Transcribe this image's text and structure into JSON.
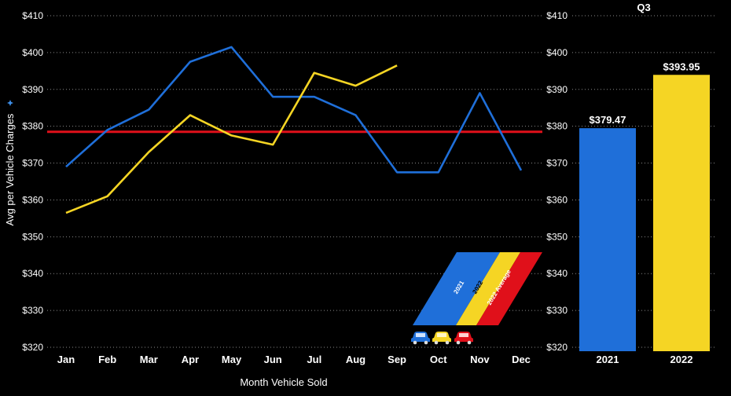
{
  "chart_data": [
    {
      "type": "line",
      "ylabel": "Avg per Vehicle Charges",
      "xlabel": "Month Vehicle Sold",
      "ylim": [
        320,
        410
      ],
      "y_ticks": [
        "$320",
        "$330",
        "$340",
        "$350",
        "$360",
        "$370",
        "$380",
        "$390",
        "$400",
        "$410"
      ],
      "grid": "horizontal dotted",
      "categories": [
        "Jan",
        "Feb",
        "Mar",
        "Apr",
        "May",
        "Jun",
        "Jul",
        "Aug",
        "Sep",
        "Oct",
        "Nov",
        "Dec"
      ],
      "series": [
        {
          "name": "2021",
          "color": "#1f6fd9",
          "values": [
            369.0,
            379.0,
            384.5,
            397.5,
            401.5,
            388.0,
            388.0,
            383.0,
            367.5,
            367.5,
            389.0,
            368.0
          ]
        },
        {
          "name": "2022",
          "color": "#f5d524",
          "values": [
            356.5,
            361.0,
            373.0,
            383.0,
            377.5,
            375.0,
            394.5,
            391.0,
            396.5,
            null,
            null,
            null
          ]
        },
        {
          "name": "2022 Average",
          "color": "#e0101a",
          "values": [
            378.5,
            378.5,
            378.5,
            378.5,
            378.5,
            378.5,
            378.5,
            378.5,
            378.5,
            378.5,
            378.5,
            378.5
          ]
        }
      ],
      "legend": [
        "2021",
        "2022",
        "2022 Average"
      ],
      "legend_placement": "bottom-right"
    },
    {
      "type": "bar",
      "title": "Q3",
      "ylim": [
        320,
        410
      ],
      "y_ticks": [
        "$320",
        "$330",
        "$340",
        "$350",
        "$360",
        "$370",
        "$380",
        "$390",
        "$400",
        "$410"
      ],
      "grid": "horizontal dotted",
      "categories": [
        "2021",
        "2022"
      ],
      "values": [
        379.47,
        393.95
      ],
      "value_labels": [
        "$379.47",
        "$393.95"
      ],
      "colors": [
        "#1f6fd9",
        "#f5d524"
      ]
    }
  ],
  "icons": [
    "car-blue-icon",
    "car-yellow-icon",
    "car-red-icon",
    "sparkle-icon"
  ]
}
